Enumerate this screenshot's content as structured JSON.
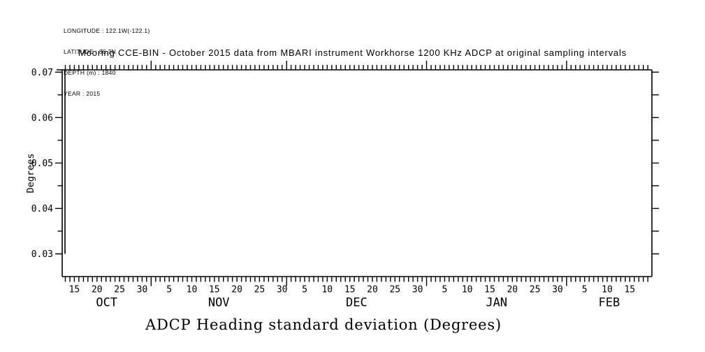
{
  "station_info": {
    "lines": [
      "LONGITUDE : 122.1W(-122.1)",
      "LATITUDE : 36.7N",
      "DEPTH (m) : 1840",
      "YEAR : 2015"
    ]
  },
  "header": {
    "title": "Mooring CCE-BIN - October 2015 data from MBARI instrument Workhorse 1200 KHz ADCP at original sampling intervals"
  },
  "footer": {
    "title": "ADCP Heading standard deviation (Degrees)"
  },
  "chart_data": {
    "type": "line",
    "title": "ADCP Heading standard deviation (Degrees)",
    "subtitle": "Mooring CCE-BIN - October 2015 data from MBARI instrument Workhorse 1200 KHz ADCP at original sampling intervals",
    "ylabel": "Degrees",
    "ylim": [
      0.025,
      0.0705
    ],
    "y_major_ticks": [
      0.03,
      0.04,
      0.05,
      0.06,
      0.07
    ],
    "y_minor_tick_step": 0.005,
    "x_axis": {
      "unit": "day (day 0 = OCT 1 of YEAR 2015)",
      "range_days": [
        11.3,
        141.9
      ],
      "minor_tick_every_days": 1,
      "labeled_days_of_month": [
        5,
        10,
        15,
        20,
        25,
        30
      ],
      "months": [
        {
          "label": "OCT",
          "start_day": 0,
          "end_day": 31
        },
        {
          "label": "NOV",
          "start_day": 31,
          "end_day": 61
        },
        {
          "label": "DEC",
          "start_day": 61,
          "end_day": 92
        },
        {
          "label": "JAN",
          "start_day": 92,
          "end_day": 123
        },
        {
          "label": "FEB",
          "start_day": 123,
          "end_day": 152
        }
      ]
    },
    "series": [],
    "grid": false,
    "legend": false,
    "colors": {
      "background": "#ffffff",
      "axis": "#000000",
      "text": "#000000"
    }
  }
}
